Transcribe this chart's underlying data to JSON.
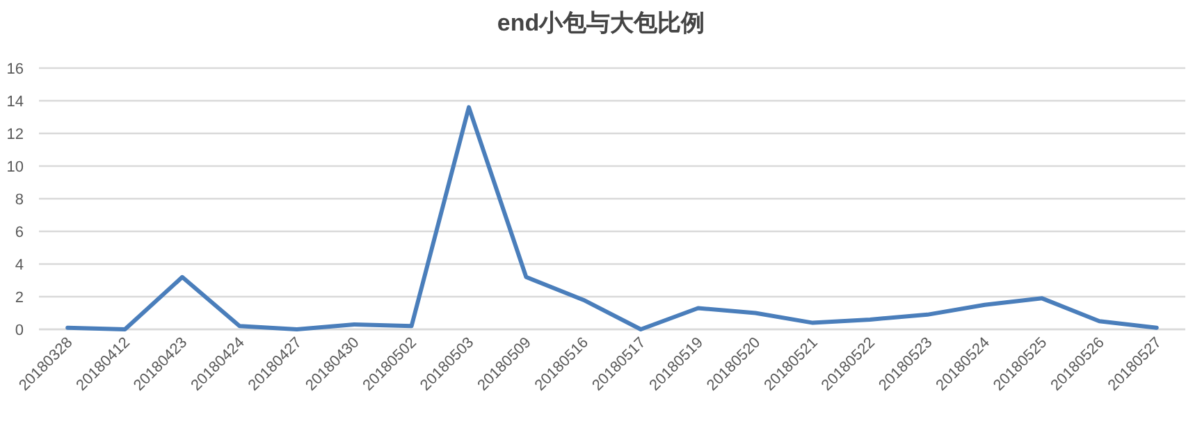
{
  "chart_data": {
    "type": "line",
    "title": "end小包与大包比例",
    "categories": [
      "20180328",
      "20180412",
      "20180423",
      "20180424",
      "20180427",
      "20180430",
      "20180502",
      "20180503",
      "20180509",
      "20180516",
      "20180517",
      "20180519",
      "20180520",
      "20180521",
      "20180522",
      "20180523",
      "20180524",
      "20180525",
      "20180526",
      "20180527"
    ],
    "series": [
      {
        "color": "#4a7ebb",
        "values": [
          0.1,
          0,
          3.2,
          0.2,
          0,
          0.3,
          0.2,
          13.6,
          3.2,
          1.8,
          0,
          1.3,
          1.0,
          0.4,
          0.6,
          0.9,
          1.5,
          1.9,
          0.5,
          0.1
        ]
      }
    ],
    "ylim": [
      0,
      16
    ],
    "yticks": [
      0,
      2,
      4,
      6,
      8,
      10,
      12,
      14,
      16
    ],
    "grid": "y",
    "marker": "none",
    "line_style": "solid"
  }
}
